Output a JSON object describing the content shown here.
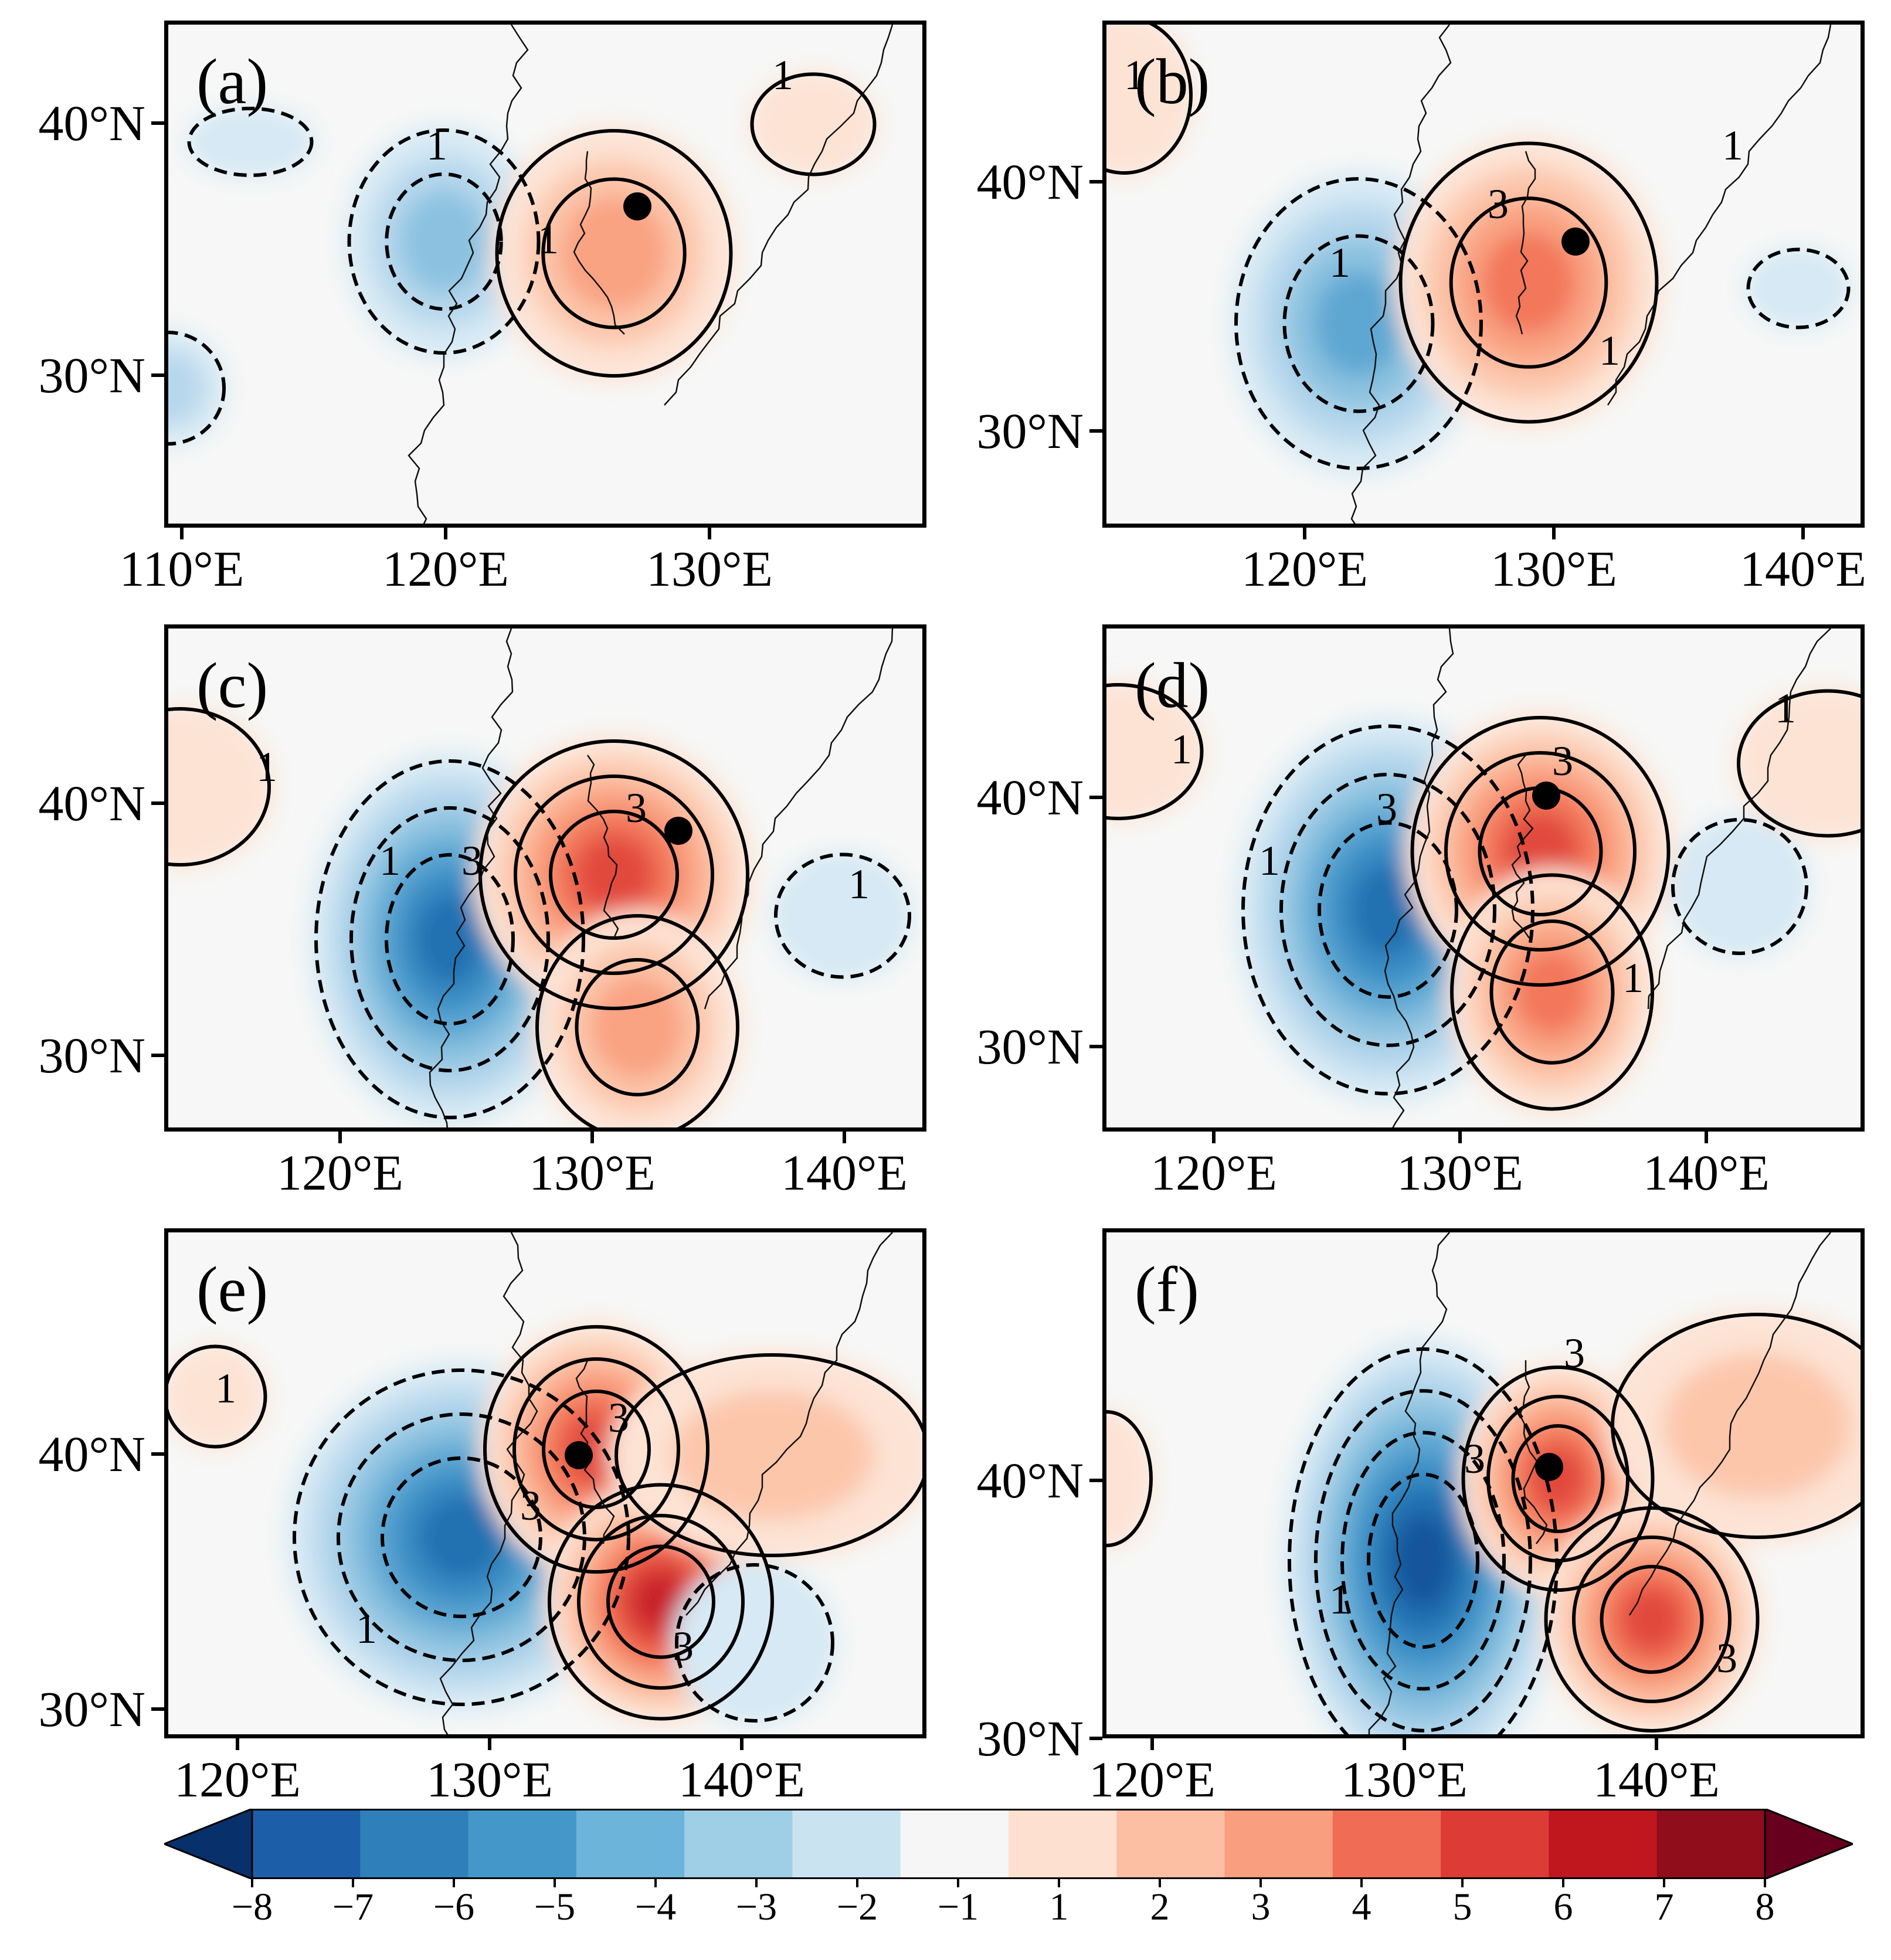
{
  "panels": [
    {
      "label": "(a)",
      "lat_ticks": [
        "40°N",
        "30°N"
      ],
      "lon_ticks": [
        "110°E",
        "120°E",
        "130°E"
      ],
      "contour_labels": [
        "1",
        "1",
        "1"
      ]
    },
    {
      "label": "(b)",
      "lat_ticks": [
        "40°N",
        "30°N"
      ],
      "lon_ticks": [
        "120°E",
        "130°E",
        "140°E"
      ],
      "contour_labels": [
        "1",
        "1",
        "1",
        "3",
        "1"
      ]
    },
    {
      "label": "(c)",
      "lat_ticks": [
        "40°N",
        "30°N"
      ],
      "lon_ticks": [
        "120°E",
        "130°E",
        "140°E"
      ],
      "contour_labels": [
        "1",
        "1",
        "3",
        "3",
        "1"
      ]
    },
    {
      "label": "(d)",
      "lat_ticks": [
        "40°N",
        "30°N"
      ],
      "lon_ticks": [
        "120°E",
        "130°E",
        "140°E"
      ],
      "contour_labels": [
        "1",
        "1",
        "3",
        "3",
        "1",
        "1"
      ]
    },
    {
      "label": "(e)",
      "lat_ticks": [
        "40°N",
        "30°N"
      ],
      "lon_ticks": [
        "120°E",
        "130°E",
        "140°E"
      ],
      "contour_labels": [
        "1",
        "3",
        "3",
        "3",
        "1",
        "1"
      ]
    },
    {
      "label": "(f)",
      "lat_ticks": [
        "40°N",
        "30°N"
      ],
      "lon_ticks": [
        "120°E",
        "130°E",
        "140°E"
      ],
      "contour_labels": [
        "3",
        "3",
        "1",
        "1",
        "3"
      ]
    }
  ],
  "colorbar": {
    "ticks": [
      "−8",
      "−7",
      "−6",
      "−5",
      "−4",
      "−3",
      "−2",
      "−1",
      "1",
      "2",
      "3",
      "4",
      "5",
      "6",
      "7",
      "8"
    ],
    "colors": [
      "#08306b",
      "#1c5fa8",
      "#2f7fbb",
      "#4498c9",
      "#6cb4da",
      "#9fcfe6",
      "#c9e3f1",
      "#f5f6f5",
      "#fde0d0",
      "#fcbfa3",
      "#f99e7e",
      "#f06c55",
      "#dd3b36",
      "#c0161e",
      "#900d1b",
      "#67001f"
    ]
  }
}
